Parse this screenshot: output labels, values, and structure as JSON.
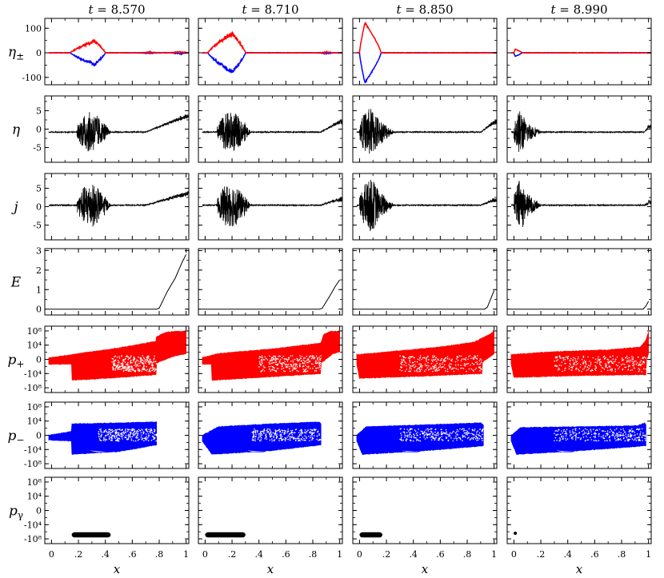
{
  "chart_data": {
    "type": "multi-panel",
    "columns": [
      {
        "label": "t = 8.570",
        "time": 8.57
      },
      {
        "label": "t = 8.710",
        "time": 8.71
      },
      {
        "label": "t = 8.850",
        "time": 8.85
      },
      {
        "label": "t = 8.990",
        "time": 8.99
      }
    ],
    "rows": [
      {
        "key": "eta_pm",
        "label": "η±",
        "ylim": [
          -130,
          140
        ],
        "yticks": [
          100,
          0,
          -100
        ],
        "ytick_labels": [
          "100",
          "0",
          "-100"
        ],
        "series_colors": [
          "#ff0000",
          "#0000ff"
        ]
      },
      {
        "key": "eta",
        "label": "η",
        "ylim": [
          -9,
          9
        ],
        "yticks": [
          5,
          0,
          -5
        ],
        "ytick_labels": [
          "5",
          "0",
          "-5"
        ],
        "series_colors": [
          "#000000"
        ]
      },
      {
        "key": "j",
        "label": "j",
        "ylim": [
          -9,
          9
        ],
        "yticks": [
          5,
          0,
          -5
        ],
        "ytick_labels": [
          "5",
          "0",
          "-5"
        ],
        "series_colors": [
          "#000000"
        ]
      },
      {
        "key": "E",
        "label": "E",
        "ylim": [
          -0.3,
          3.1
        ],
        "yticks": [
          3,
          2,
          1,
          0
        ],
        "ytick_labels": [
          "3",
          "2",
          "1",
          "0"
        ],
        "series_colors": [
          "#000000"
        ]
      },
      {
        "key": "p_plus",
        "label": "p+",
        "ylim": [
          -3.5,
          3.5
        ],
        "yticks": [
          3,
          1.5,
          0,
          -1.5,
          -3
        ],
        "ytick_labels": [
          "10⁸",
          "10⁴",
          "0",
          "-10⁴",
          "-10⁸"
        ],
        "series_colors": [
          "#ff0000"
        ]
      },
      {
        "key": "p_minus",
        "label": "p−",
        "ylim": [
          -3.5,
          3.5
        ],
        "yticks": [
          3,
          1.5,
          0,
          -1.5,
          -3
        ],
        "ytick_labels": [
          "10⁸",
          "10⁴",
          "0",
          "-10⁴",
          "-10⁸"
        ],
        "series_colors": [
          "#0000ff"
        ]
      },
      {
        "key": "p_gamma",
        "label": "pγ",
        "ylim": [
          -3.5,
          3.5
        ],
        "yticks": [
          3,
          1.5,
          0,
          -1.5,
          -3
        ],
        "ytick_labels": [
          "10⁸",
          "10⁴",
          "0",
          "-10⁴",
          "-10⁸"
        ],
        "series_colors": [
          "#000000"
        ]
      }
    ],
    "x_axis": {
      "label": "x",
      "xlim": [
        -0.05,
        1.02
      ],
      "ticks": [
        0,
        0.2,
        0.4,
        0.6,
        0.8,
        1
      ],
      "tick_labels": [
        "0",
        ".2",
        ".4",
        ".6",
        ".8",
        "1"
      ]
    },
    "panel_data": {
      "eta_pm": [
        {
          "amp": 55,
          "lo": 0.14,
          "hi": 0.4,
          "peak": 0.32,
          "jitter": 0.25,
          "tail": [
            {
              "x": 0.72,
              "a": 4
            },
            {
              "x": 0.95,
              "a": 6
            }
          ]
        },
        {
          "amp": 88,
          "lo": 0.02,
          "hi": 0.3,
          "peak": 0.2,
          "jitter": 0.22,
          "tail": [
            {
              "x": 0.9,
              "a": 4
            }
          ]
        },
        {
          "amp": 125,
          "lo": 0.0,
          "hi": 0.16,
          "peak": 0.04,
          "jitter": 0.05,
          "tail": []
        },
        {
          "amp": 15,
          "lo": 0.0,
          "hi": 0.06,
          "peak": 0.01,
          "jitter": 0.05,
          "tail": []
        }
      ],
      "eta": [
        {
          "base": -0.8,
          "band": [
            0.19,
            0.39
          ],
          "band_amp": 5.5,
          "decay": 0.05,
          "ramp": {
            "start": 0.7,
            "end": 1.0,
            "to": 3.5
          }
        },
        {
          "base": -0.8,
          "band": [
            0.09,
            0.29
          ],
          "band_amp": 5.5,
          "decay": 0.05,
          "ramp": {
            "start": 0.86,
            "end": 1.0,
            "to": 2.0
          }
        },
        {
          "base": -0.8,
          "band": [
            0.0,
            0.16
          ],
          "band_amp": 6.5,
          "decay": 0.1,
          "ramp": {
            "start": 0.9,
            "end": 1.0,
            "to": 1.8
          }
        },
        {
          "base": -0.8,
          "band": [
            0.0,
            0.09
          ],
          "band_amp": 6.0,
          "decay": 0.12,
          "ramp": {
            "start": 0.97,
            "end": 1.0,
            "to": 0.7
          }
        }
      ],
      "j": [
        {
          "base": 0.4,
          "band": [
            0.19,
            0.39
          ],
          "band_amp": 6.0,
          "decay": 0.05,
          "ramp": {
            "start": 0.7,
            "end": 1.0,
            "to": 3.5
          }
        },
        {
          "base": 0.4,
          "band": [
            0.09,
            0.29
          ],
          "band_amp": 6.0,
          "decay": 0.05,
          "ramp": {
            "start": 0.86,
            "end": 1.0,
            "to": 2.0
          }
        },
        {
          "base": 0.4,
          "band": [
            0.0,
            0.16
          ],
          "band_amp": 7.0,
          "decay": 0.1,
          "ramp": {
            "start": 0.9,
            "end": 1.0,
            "to": 1.8
          }
        },
        {
          "base": 0.4,
          "band": [
            0.0,
            0.09
          ],
          "band_amp": 7.0,
          "decay": 0.12,
          "ramp": {
            "start": 0.97,
            "end": 1.0,
            "to": 1.1
          }
        }
      ],
      "E": [
        {
          "x": [
            -0.02,
            0.78,
            0.8,
            0.86,
            0.92,
            0.97,
            1.0
          ],
          "y": [
            0.0,
            0.0,
            0.05,
            0.9,
            1.6,
            2.4,
            2.8
          ]
        },
        {
          "x": [
            -0.02,
            0.85,
            0.87,
            0.92,
            0.97,
            1.0
          ],
          "y": [
            0.0,
            0.0,
            0.05,
            0.6,
            1.2,
            1.5
          ]
        },
        {
          "x": [
            -0.02,
            0.93,
            0.95,
            1.0
          ],
          "y": [
            0.0,
            0.0,
            0.1,
            0.95
          ]
        },
        {
          "x": [
            -0.02,
            0.96,
            0.98,
            1.0
          ],
          "y": [
            0.0,
            0.0,
            0.15,
            0.4
          ]
        }
      ],
      "p_plus": [
        {
          "upper": [
            [
              -0.02,
              0.15
            ],
            [
              0.15,
              0.5
            ],
            [
              0.5,
              1.2
            ],
            [
              0.78,
              1.9
            ],
            [
              0.78,
              2.4
            ],
            [
              0.85,
              2.85
            ],
            [
              0.92,
              2.95
            ],
            [
              1.0,
              2.95
            ]
          ],
          "lower": [
            [
              -0.02,
              -0.5
            ],
            [
              0.15,
              -0.5
            ],
            [
              0.15,
              -2.2
            ],
            [
              0.4,
              -2.0
            ],
            [
              0.78,
              -1.6
            ],
            [
              0.78,
              -0.4
            ],
            [
              0.9,
              0.3
            ],
            [
              1.0,
              0.6
            ]
          ],
          "speckle": [
            0.45,
            0.78,
            -1.3,
            0.4
          ]
        },
        {
          "upper": [
            [
              -0.02,
              0.2
            ],
            [
              0.1,
              0.6
            ],
            [
              0.5,
              1.1
            ],
            [
              0.86,
              1.7
            ],
            [
              0.88,
              2.6
            ],
            [
              0.93,
              2.95
            ],
            [
              1.0,
              2.95
            ]
          ],
          "lower": [
            [
              -0.02,
              -0.5
            ],
            [
              0.05,
              -0.5
            ],
            [
              0.05,
              -2.2
            ],
            [
              0.4,
              -1.9
            ],
            [
              0.86,
              -1.5
            ],
            [
              0.86,
              -0.4
            ],
            [
              0.95,
              0.6
            ],
            [
              1.0,
              0.8
            ]
          ],
          "speckle": [
            0.4,
            0.86,
            -1.3,
            0.4
          ]
        },
        {
          "upper": [
            [
              -0.02,
              0.5
            ],
            [
              0.3,
              0.9
            ],
            [
              0.6,
              1.3
            ],
            [
              0.85,
              1.8
            ],
            [
              0.95,
              2.5
            ],
            [
              1.0,
              2.95
            ]
          ],
          "lower": [
            [
              -0.02,
              -0.5
            ],
            [
              0.0,
              -2.0
            ],
            [
              0.4,
              -1.8
            ],
            [
              0.91,
              -1.5
            ],
            [
              0.91,
              -0.3
            ],
            [
              1.0,
              0.6
            ]
          ],
          "speckle": [
            0.3,
            0.91,
            -1.3,
            0.4
          ]
        },
        {
          "upper": [
            [
              -0.02,
              0.5
            ],
            [
              0.3,
              0.8
            ],
            [
              0.7,
              1.0
            ],
            [
              0.94,
              1.3
            ],
            [
              0.98,
              2.0
            ],
            [
              1.0,
              2.9
            ]
          ],
          "lower": [
            [
              -0.02,
              -0.5
            ],
            [
              0.0,
              -1.9
            ],
            [
              0.5,
              -1.7
            ],
            [
              0.98,
              -1.6
            ],
            [
              0.98,
              -0.2
            ],
            [
              1.0,
              0.6
            ]
          ],
          "speckle": [
            0.3,
            0.98,
            -1.3,
            0.4
          ]
        }
      ],
      "p_minus": [
        {
          "upper": [
            [
              -0.02,
              0.0
            ],
            [
              0.15,
              0.4
            ],
            [
              0.15,
              1.2
            ],
            [
              0.5,
              1.3
            ],
            [
              0.78,
              1.4
            ],
            [
              0.78,
              1.1
            ]
          ],
          "lower": [
            [
              -0.02,
              -0.5
            ],
            [
              0.15,
              -0.6
            ],
            [
              0.15,
              -2.0
            ],
            [
              0.5,
              -1.7
            ],
            [
              0.78,
              -1.0
            ],
            [
              0.78,
              -0.9
            ]
          ],
          "speckle": [
            0.35,
            0.78,
            -0.6,
            0.7
          ],
          "arc": [
            0.27,
            0.42,
            -1.6
          ]
        },
        {
          "upper": [
            [
              -0.02,
              0.0
            ],
            [
              0.1,
              0.9
            ],
            [
              0.5,
              1.2
            ],
            [
              0.85,
              1.4
            ],
            [
              0.86,
              1.2
            ]
          ],
          "lower": [
            [
              -0.02,
              -0.6
            ],
            [
              0.05,
              -2.0
            ],
            [
              0.5,
              -1.6
            ],
            [
              0.86,
              -1.0
            ],
            [
              0.86,
              -0.9
            ]
          ],
          "speckle": [
            0.35,
            0.86,
            -0.6,
            0.7
          ],
          "arc": [
            0.3,
            0.45,
            -1.6
          ]
        },
        {
          "upper": [
            [
              -0.02,
              0.0
            ],
            [
              0.05,
              0.9
            ],
            [
              0.5,
              1.1
            ],
            [
              0.9,
              1.3
            ],
            [
              0.92,
              1.1
            ]
          ],
          "lower": [
            [
              -0.02,
              -0.6
            ],
            [
              0.02,
              -2.0
            ],
            [
              0.5,
              -1.6
            ],
            [
              0.92,
              -1.1
            ],
            [
              0.92,
              -0.9
            ]
          ],
          "speckle": [
            0.3,
            0.92,
            -0.6,
            0.7
          ],
          "arc": [
            0.3,
            0.45,
            -1.6
          ]
        },
        {
          "upper": [
            [
              -0.02,
              0.0
            ],
            [
              0.05,
              0.8
            ],
            [
              0.5,
              0.9
            ],
            [
              0.92,
              1.0
            ],
            [
              0.97,
              1.3
            ],
            [
              0.98,
              1.1
            ]
          ],
          "lower": [
            [
              -0.02,
              -0.6
            ],
            [
              0.02,
              -2.0
            ],
            [
              0.5,
              -1.6
            ],
            [
              0.98,
              -1.1
            ],
            [
              0.98,
              -0.9
            ]
          ],
          "speckle": [
            0.3,
            0.98,
            -0.6,
            0.7
          ],
          "arc": [
            0.3,
            0.45,
            -1.6
          ]
        }
      ],
      "p_gamma": [
        {
          "blob": [
            0.15,
            0.44,
            -2.3,
            -2.85
          ]
        },
        {
          "blob": [
            0.0,
            0.3,
            -2.3,
            -2.85
          ]
        },
        {
          "blob": [
            0.0,
            0.17,
            -2.3,
            -2.85
          ]
        },
        {
          "dot": [
            0.01,
            -2.4
          ]
        }
      ]
    }
  }
}
